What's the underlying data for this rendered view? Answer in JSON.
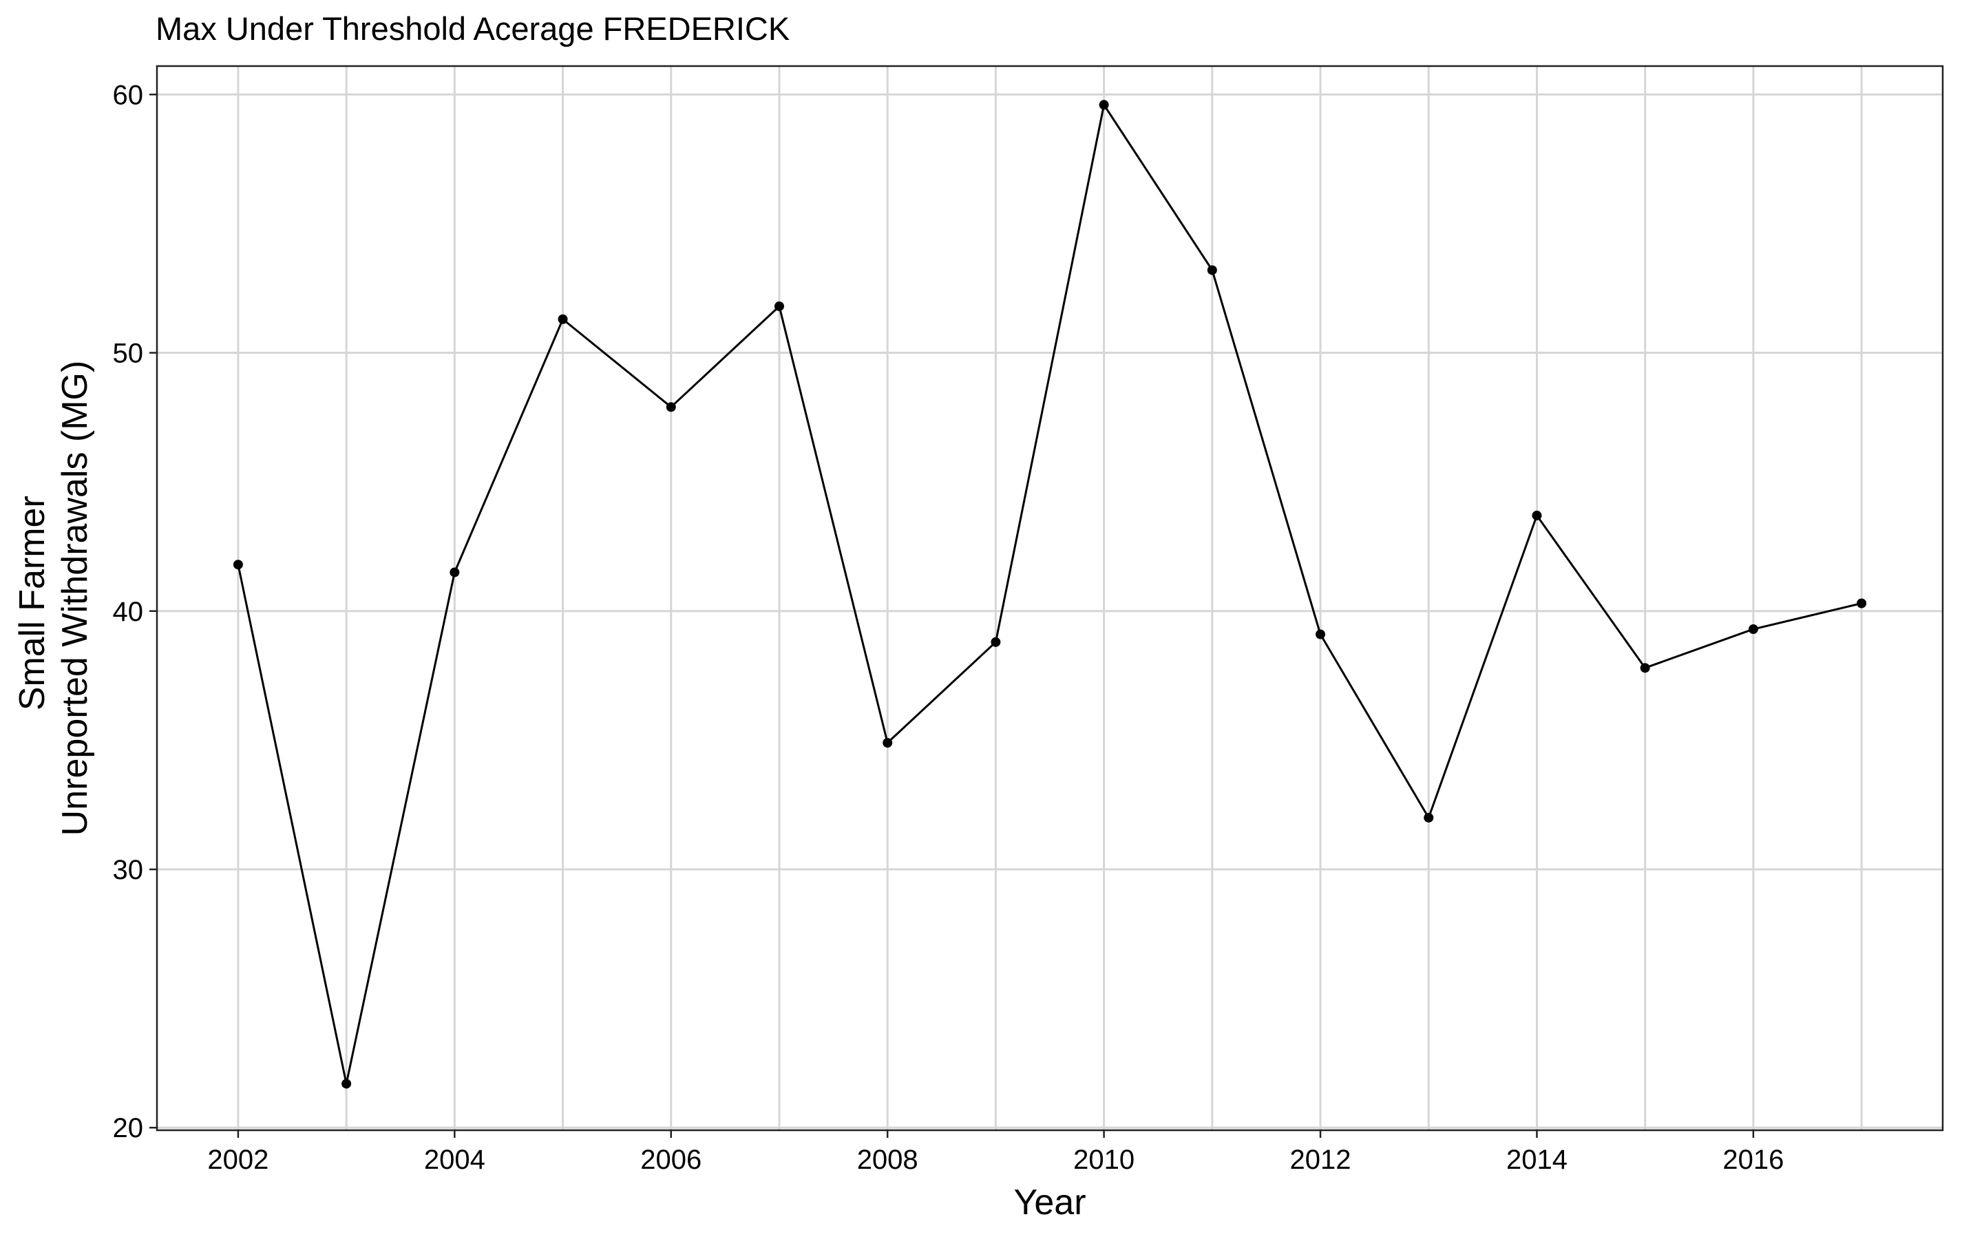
{
  "chart_data": {
    "type": "line",
    "title": "Max Under Threshold Acerage FREDERICK",
    "xlabel": "Year",
    "ylabel_lines": [
      "Small Farmer",
      "Unreported Withdrawals (MG)"
    ],
    "xlim": [
      2001.25,
      2017.75
    ],
    "ylim": [
      19.9,
      61.1
    ],
    "x_ticks": [
      2002,
      2004,
      2006,
      2008,
      2010,
      2012,
      2014,
      2016
    ],
    "x_tick_labels": [
      "2002",
      "2004",
      "2006",
      "2008",
      "2010",
      "2012",
      "2014",
      "2016"
    ],
    "y_ticks": [
      20,
      30,
      40,
      50,
      60
    ],
    "y_tick_labels": [
      "20",
      "30",
      "40",
      "50",
      "60"
    ],
    "x_minor_gridlines": [
      2003,
      2005,
      2007,
      2009,
      2011,
      2013,
      2015,
      2017
    ],
    "grid": true,
    "legend": "none",
    "series": [
      {
        "x": [
          2002,
          2003,
          2004,
          2005,
          2006,
          2007,
          2008,
          2009,
          2010,
          2011,
          2012,
          2013,
          2014,
          2015,
          2016,
          2017
        ],
        "values": [
          41.8,
          21.7,
          41.5,
          51.3,
          47.9,
          51.8,
          34.9,
          38.8,
          59.6,
          53.2,
          39.1,
          32.0,
          43.7,
          37.8,
          39.3,
          40.3
        ],
        "color": "#000000"
      }
    ]
  }
}
